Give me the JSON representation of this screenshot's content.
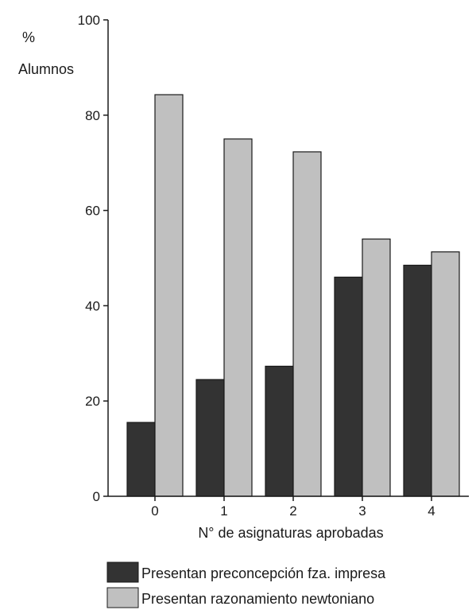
{
  "chart_data": {
    "type": "bar",
    "title": "",
    "ylabel_lines": [
      "%",
      "Alumnos"
    ],
    "xlabel": "N° de asignaturas aprobadas",
    "categories": [
      "0",
      "1",
      "2",
      "3",
      "4"
    ],
    "ylim": [
      0,
      100
    ],
    "yticks": [
      "0",
      "20",
      "40",
      "60",
      "80",
      "100"
    ],
    "grid": false,
    "legend_position": "bottom",
    "series": [
      {
        "name": "Presentan preconcepción fza. impresa",
        "values": [
          15.5,
          24.5,
          27.3,
          46,
          48.5
        ],
        "color": "#333333"
      },
      {
        "name": "Presentan razonamiento newtoniano",
        "values": [
          84.3,
          75,
          72.3,
          54,
          51.3
        ],
        "color": "#c0c0c0"
      }
    ]
  }
}
